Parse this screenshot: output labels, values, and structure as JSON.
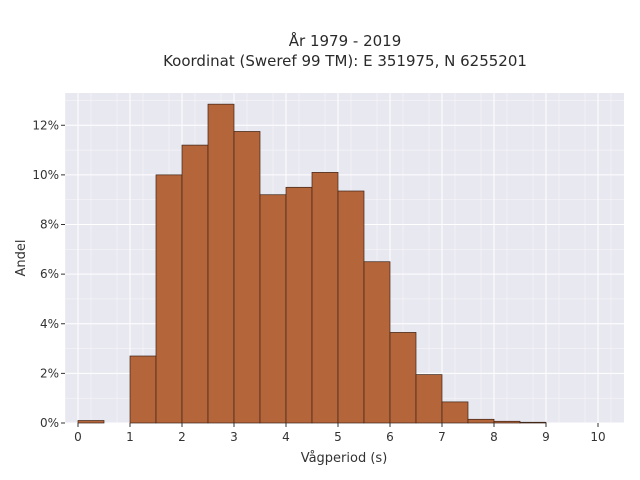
{
  "chart_data": {
    "type": "bar",
    "title_line1": "År 1979 - 2019",
    "title_line2": "Koordinat (Sweref 99 TM): E 351975, N 6255201",
    "xlabel": "Vågperiod (s)",
    "ylabel": "Andel",
    "bin_width": 0.5,
    "bin_starts": [
      0,
      0.5,
      1,
      1.5,
      2,
      2.5,
      3,
      3.5,
      4,
      4.5,
      5,
      5.5,
      6,
      6.5,
      7,
      7.5,
      8,
      8.5,
      9,
      9.5
    ],
    "values": [
      0.1,
      0,
      2.7,
      10.0,
      11.2,
      12.85,
      11.75,
      9.2,
      9.5,
      10.1,
      9.35,
      6.5,
      3.65,
      1.95,
      0.85,
      0.15,
      0.07,
      0.03,
      0,
      0
    ],
    "xlim": [
      -0.25,
      10.5
    ],
    "ylim": [
      0,
      13.3
    ],
    "x_ticks": [
      0,
      1,
      2,
      3,
      4,
      5,
      6,
      7,
      8,
      9,
      10
    ],
    "x_tick_labels": [
      "0",
      "1",
      "2",
      "3",
      "4",
      "5",
      "6",
      "7",
      "8",
      "9",
      "10"
    ],
    "y_ticks": [
      0,
      2,
      4,
      6,
      8,
      10,
      12
    ],
    "y_tick_labels": [
      "0%",
      "2%",
      "4%",
      "6%",
      "8%",
      "10%",
      "12%"
    ],
    "grid": true,
    "bar_color": "#b5653a",
    "bar_edge_color": "#3d2417",
    "background_color": "#e8e8f0",
    "grid_color": "#ffffff"
  }
}
